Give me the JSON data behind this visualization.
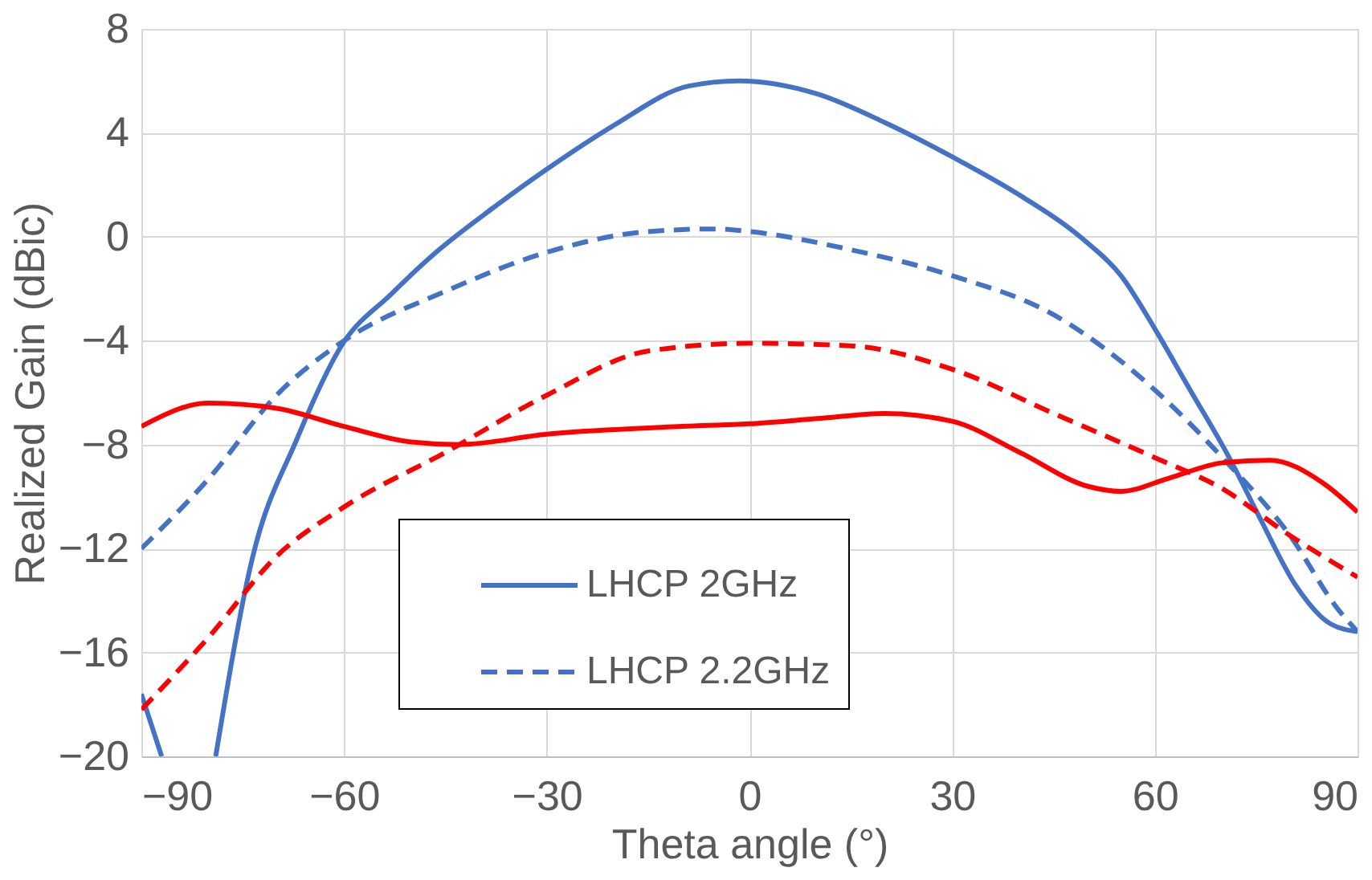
{
  "chart_data": {
    "type": "line",
    "xlabel": "Theta angle (°)",
    "ylabel": "Realized Gain (dBic)",
    "xlim": [
      -90,
      90
    ],
    "ylim": [
      -20,
      8
    ],
    "xticks": [
      -90,
      -60,
      -30,
      0,
      30,
      60,
      90
    ],
    "yticks": [
      -20,
      -16,
      -12,
      -8,
      -4,
      0,
      4,
      8
    ],
    "grid": true,
    "legend": "bottom",
    "marker": "none",
    "series": [
      {
        "name": "LHCP 2GHz",
        "color": "#4472c4",
        "line_style": "solid",
        "x": [
          -90,
          -87,
          -83,
          -79,
          -73.6,
          -67,
          -60.4,
          -53,
          -46.4,
          -38,
          -30,
          -20,
          -9,
          -1.6,
          10,
          20,
          30.2,
          40,
          49.4,
          55,
          59.9,
          65,
          71,
          75.5,
          80.8,
          86,
          90
        ],
        "values": [
          -17.6,
          -20,
          null,
          -20,
          -12.4,
          -7.8,
          -4.2,
          -2.2,
          -0.6,
          1.1,
          2.6,
          4.3,
          5.8,
          6.0,
          5.5,
          4.4,
          3.05,
          1.6,
          -0.1,
          -1.5,
          -3.5,
          -5.8,
          -8.5,
          -10.8,
          -13.4,
          -14.9,
          -15.2
        ]
      },
      {
        "name": "LHCP 2.2GHz",
        "color": "#4472c4",
        "line_style": "dashed",
        "x": [
          -90,
          -80,
          -70,
          -60,
          -45,
          -30,
          -15,
          -5,
          0,
          15,
          30,
          45,
          60,
          70,
          80,
          87,
          90
        ],
        "values": [
          -12.0,
          -9.3,
          -6.1,
          -4.0,
          -2.1,
          -0.6,
          0.2,
          0.3,
          0.2,
          -0.5,
          -1.5,
          -3.0,
          -5.9,
          -8.5,
          -11.5,
          -14.3,
          -15.2
        ]
      },
      {
        "color": "#ff0000",
        "line_style": "solid",
        "x": [
          -90,
          -80,
          -70,
          -60,
          -50,
          -43,
          -30,
          -10,
          0,
          10,
          20,
          30,
          40,
          50,
          55,
          62,
          70,
          77,
          85,
          90
        ],
        "values": [
          -7.3,
          -6.4,
          -6.6,
          -7.3,
          -7.9,
          -8.0,
          -7.6,
          -7.3,
          -7.2,
          -7.0,
          -6.8,
          -7.1,
          -8.3,
          -9.6,
          -9.8,
          -9.3,
          -8.7,
          -8.6,
          -9.5,
          -10.6
        ]
      },
      {
        "color": "#ff0000",
        "line_style": "dashed",
        "x": [
          -90,
          -80,
          -70,
          -60,
          -45,
          -30,
          -15,
          0,
          15,
          30,
          45,
          60,
          70,
          80,
          90
        ],
        "values": [
          -18.2,
          -15.4,
          -12.3,
          -10.4,
          -8.3,
          -6.1,
          -4.4,
          -4.1,
          -4.2,
          -5.1,
          -6.8,
          -8.5,
          -9.7,
          -11.5,
          -13.1
        ]
      }
    ]
  }
}
